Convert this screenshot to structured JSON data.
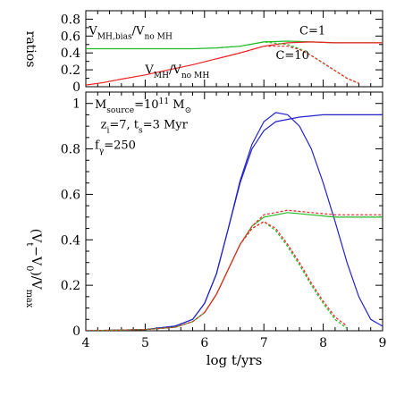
{
  "chart_data": [
    {
      "type": "line",
      "panel": "top",
      "ylabel": "ratios",
      "ylim": [
        0,
        0.9
      ],
      "xlim": [
        4,
        9
      ],
      "yticks": [
        0,
        0.2,
        0.4,
        0.6,
        0.8
      ],
      "ytick_labels": [
        "0",
        "0.2",
        "0.4",
        "0.6",
        "0.8"
      ],
      "log_x": true,
      "annotations": [
        {
          "text": "V",
          "sub": "MH,bias",
          "text2": "/V",
          "sub2": "no MH",
          "x": 4.05,
          "y": 0.62
        },
        {
          "text": "V",
          "sub": "MH",
          "text2": "/V",
          "sub2": "no MH",
          "x": 5.0,
          "y": 0.16
        },
        {
          "text": "C=1",
          "x": 7.6,
          "y": 0.62
        },
        {
          "text": "C=10",
          "x": 7.2,
          "y": 0.33
        }
      ],
      "series": [
        {
          "color": "#22bb22",
          "dash": "solid",
          "x": [
            4,
            4.3,
            4.6,
            5,
            5.4,
            5.8,
            6.2,
            6.6,
            7,
            7.4,
            7.8,
            8.2,
            8.6,
            9
          ],
          "y": [
            0.45,
            0.45,
            0.45,
            0.45,
            0.45,
            0.45,
            0.46,
            0.48,
            0.53,
            0.54,
            0.53,
            0.52,
            0.52,
            0.52
          ]
        },
        {
          "color": "#ee2222",
          "dash": "solid",
          "x": [
            4,
            4.3,
            4.6,
            5,
            5.4,
            5.8,
            6.2,
            6.6,
            7,
            7.4,
            7.8,
            8.2,
            8.6,
            9
          ],
          "y": [
            0.02,
            0.05,
            0.09,
            0.14,
            0.2,
            0.26,
            0.33,
            0.4,
            0.48,
            0.52,
            0.53,
            0.52,
            0.52,
            0.52
          ]
        },
        {
          "color": "#22bb22",
          "dash": "dashed",
          "x": [
            6.2,
            6.6,
            7,
            7.4,
            7.6,
            7.8,
            8,
            8.2,
            8.4,
            8.6
          ],
          "y": [
            0.46,
            0.48,
            0.53,
            0.5,
            0.45,
            0.37,
            0.28,
            0.19,
            0.1,
            0.04
          ]
        },
        {
          "color": "#ee2222",
          "dash": "dashed",
          "x": [
            6.2,
            6.6,
            7,
            7.4,
            7.6,
            7.8,
            8,
            8.2,
            8.4,
            8.6
          ],
          "y": [
            0.33,
            0.4,
            0.48,
            0.48,
            0.44,
            0.37,
            0.28,
            0.19,
            0.1,
            0.04
          ]
        }
      ]
    },
    {
      "type": "line",
      "panel": "bottom",
      "xlabel": "log t/yrs",
      "ylabel": "(V",
      "ylabel_sub1": "t",
      "ylabel_mid": "−V",
      "ylabel_sub2": "0",
      "ylabel_end": ")/V",
      "ylabel_sub3": "max",
      "xlim": [
        4,
        9
      ],
      "ylim": [
        0,
        1.05
      ],
      "xticks": [
        4,
        5,
        6,
        7,
        8,
        9
      ],
      "xtick_labels": [
        "4",
        "5",
        "6",
        "7",
        "8",
        "9"
      ],
      "yticks": [
        0,
        0.2,
        0.4,
        0.6,
        0.8,
        1
      ],
      "ytick_labels": [
        "0",
        "0.2",
        "0.4",
        "0.6",
        "0.8",
        "1"
      ],
      "annotations": [
        {
          "text": "M",
          "sub": "source",
          "text2": "=10",
          "sup": "11",
          "text3": " M",
          "sub3": "⊙",
          "x": 4.15,
          "y": 0.98
        },
        {
          "text": "z",
          "sub": "i",
          "text2": "=7, t",
          "sub2": "s",
          "text3": "=3 Myr",
          "x": 4.25,
          "y": 0.89
        },
        {
          "text": "f",
          "sub": "γ",
          "text2": "=250",
          "x": 4.15,
          "y": 0.8
        }
      ],
      "series": [
        {
          "color": "#2222cc",
          "dash": "solid",
          "x": [
            4,
            5,
            5.5,
            5.8,
            6.0,
            6.2,
            6.4,
            6.6,
            6.8,
            7.0,
            7.2,
            7.6,
            8.0,
            8.4,
            8.8,
            9
          ],
          "y": [
            0,
            0.005,
            0.02,
            0.05,
            0.12,
            0.25,
            0.45,
            0.65,
            0.8,
            0.88,
            0.92,
            0.94,
            0.95,
            0.95,
            0.95,
            0.95
          ]
        },
        {
          "color": "#2222cc",
          "dash": "solid",
          "x": [
            4,
            5,
            5.5,
            5.8,
            6.0,
            6.2,
            6.4,
            6.6,
            6.8,
            7.0,
            7.2,
            7.4,
            7.6,
            7.8,
            8.0,
            8.2,
            8.4,
            8.6,
            8.8,
            9
          ],
          "y": [
            0,
            0.005,
            0.02,
            0.05,
            0.12,
            0.25,
            0.45,
            0.66,
            0.82,
            0.92,
            0.96,
            0.95,
            0.9,
            0.8,
            0.65,
            0.48,
            0.3,
            0.15,
            0.05,
            0.02
          ]
        },
        {
          "color": "#22bb22",
          "dash": "solid",
          "x": [
            4,
            5,
            5.5,
            5.8,
            6.0,
            6.2,
            6.4,
            6.6,
            6.8,
            7.0,
            7.4,
            7.8,
            8.2,
            8.6,
            9
          ],
          "y": [
            0,
            0.005,
            0.015,
            0.04,
            0.08,
            0.16,
            0.27,
            0.38,
            0.46,
            0.5,
            0.52,
            0.51,
            0.5,
            0.5,
            0.5
          ]
        },
        {
          "color": "#ee2222",
          "dash": "dashed",
          "x": [
            4,
            5,
            5.5,
            5.8,
            6.0,
            6.2,
            6.4,
            6.6,
            6.8,
            7.0,
            7.4,
            7.8,
            8.2,
            8.6,
            9
          ],
          "y": [
            0,
            0.005,
            0.015,
            0.04,
            0.08,
            0.16,
            0.27,
            0.38,
            0.46,
            0.51,
            0.53,
            0.52,
            0.51,
            0.51,
            0.51
          ]
        },
        {
          "color": "#22bb22",
          "dash": "dashed",
          "x": [
            6.0,
            6.2,
            6.4,
            6.6,
            6.8,
            7.0,
            7.2,
            7.4,
            7.6,
            7.8,
            8.0,
            8.2,
            8.4
          ],
          "y": [
            0.08,
            0.16,
            0.27,
            0.38,
            0.45,
            0.48,
            0.44,
            0.37,
            0.29,
            0.2,
            0.12,
            0.05,
            0.01
          ]
        },
        {
          "color": "#ee2222",
          "dash": "dashed",
          "x": [
            6.0,
            6.2,
            6.4,
            6.6,
            6.8,
            7.0,
            7.2,
            7.4,
            7.6,
            7.8,
            8.0,
            8.2,
            8.4
          ],
          "y": [
            0.08,
            0.16,
            0.27,
            0.38,
            0.45,
            0.48,
            0.45,
            0.38,
            0.3,
            0.21,
            0.13,
            0.06,
            0.02
          ]
        }
      ]
    }
  ]
}
